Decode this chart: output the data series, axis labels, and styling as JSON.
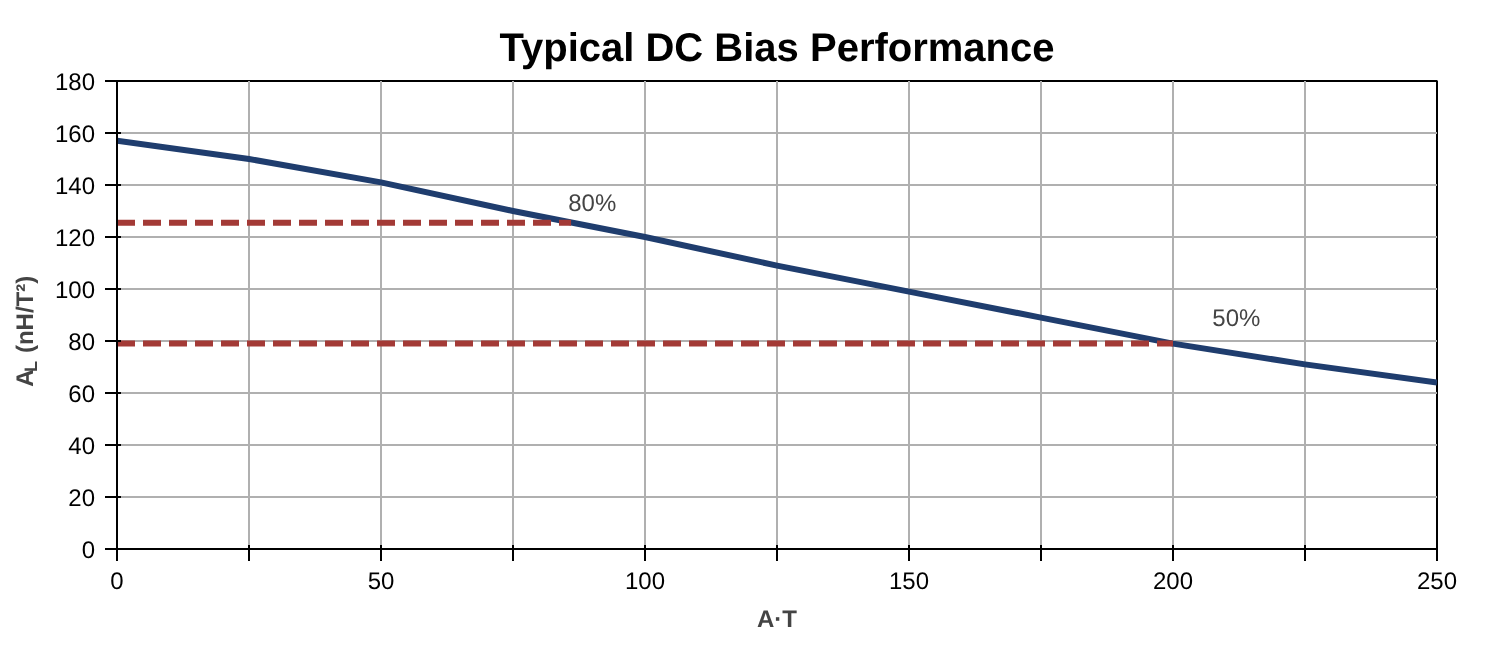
{
  "chart_data": {
    "type": "line",
    "title": "Typical DC Bias Performance",
    "xlabel": "A·T",
    "ylabel": "A$_{L}$ (nH/T²)",
    "x": [
      0,
      25,
      50,
      75,
      100,
      125,
      150,
      175,
      200,
      225,
      250
    ],
    "series": [
      {
        "color": "#1f3d6e",
        "values": [
          157,
          150,
          141,
          130,
          120,
          109,
          99,
          89,
          79,
          71,
          64
        ]
      },
      {
        "color": "#a33a36",
        "x": [
          0,
          86
        ],
        "values": [
          125.5,
          125.5
        ],
        "line_style": "dashed"
      },
      {
        "color": "#a33a36",
        "x": [
          0,
          200
        ],
        "values": [
          79,
          79
        ],
        "line_style": "dashed"
      }
    ],
    "annotations": [
      {
        "text": "80%",
        "x": 90,
        "y": 133
      },
      {
        "text": "50%",
        "x": 212,
        "y": 89
      }
    ],
    "xlim": [
      0,
      250
    ],
    "ylim": [
      0,
      180
    ],
    "xticks": [
      0,
      {
        "value": 25,
        "label": null
      },
      50,
      {
        "value": 75,
        "label": null
      },
      100,
      {
        "value": 125,
        "label": null
      },
      150,
      {
        "value": 175,
        "label": null
      },
      200,
      {
        "value": 225,
        "label": null
      },
      250
    ],
    "yticks": [
      0,
      20,
      40,
      60,
      80,
      100,
      120,
      140,
      160,
      180
    ],
    "grid": true,
    "line_style": "solid",
    "marker": "none"
  }
}
